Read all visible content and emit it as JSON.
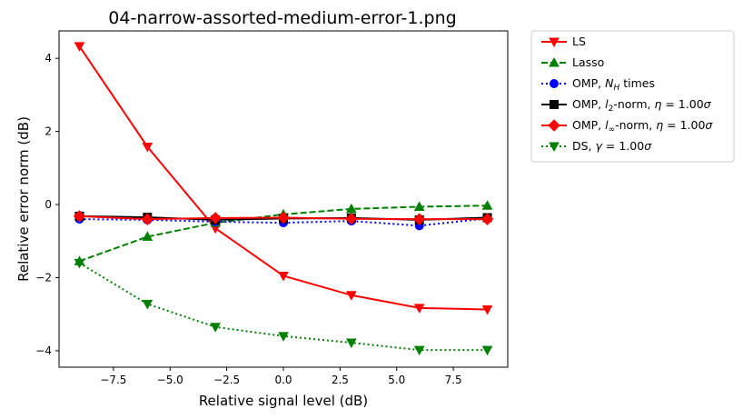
{
  "chart_data": {
    "type": "line",
    "title": "04-narrow-assorted-medium-error-1.png",
    "xlabel": "Relative signal level (dB)",
    "ylabel": "Relative error norm (dB)",
    "xlim": [
      -9.9,
      9.9
    ],
    "ylim": [
      -4.45,
      4.75
    ],
    "xticks": [
      -7.5,
      -5.0,
      -2.5,
      0.0,
      2.5,
      5.0,
      7.5
    ],
    "xtick_labels": [
      "−7.5",
      "−5.0",
      "−2.5",
      "0.0",
      "2.5",
      "5.0",
      "7.5"
    ],
    "yticks": [
      -4,
      -2,
      0,
      2,
      4
    ],
    "ytick_labels": [
      "−4",
      "−2",
      "0",
      "2",
      "4"
    ],
    "grid": false,
    "legend_position": "outside-right-top",
    "x": [
      -9,
      -6,
      -3,
      0,
      3,
      6,
      9
    ],
    "series": [
      {
        "name": "LS",
        "color": "#ff0000",
        "dash": "solid",
        "marker": "triangle-down",
        "values": [
          4.33,
          1.58,
          -0.65,
          -1.95,
          -2.48,
          -2.83,
          -2.87
        ]
      },
      {
        "name": "Lasso",
        "color": "#008000",
        "dash": "dashed",
        "marker": "triangle-up",
        "values": [
          -1.55,
          -0.88,
          -0.5,
          -0.27,
          -0.12,
          -0.06,
          -0.03
        ]
      },
      {
        "name": "OMP, N_H times",
        "color": "#0000ff",
        "dash": "dotted",
        "marker": "circle",
        "values": [
          -0.4,
          -0.42,
          -0.47,
          -0.5,
          -0.45,
          -0.58,
          -0.38
        ]
      },
      {
        "name": "OMP, l_2-norm, η = 1.00σ",
        "color": "#000000",
        "dash": "solid",
        "marker": "square",
        "values": [
          -0.32,
          -0.35,
          -0.42,
          -0.38,
          -0.37,
          -0.42,
          -0.36
        ]
      },
      {
        "name": "OMP, l_∞-norm, η = 1.00σ",
        "color": "#ff0000",
        "dash": "solid",
        "marker": "diamond",
        "values": [
          -0.32,
          -0.4,
          -0.37,
          -0.36,
          -0.39,
          -0.4,
          -0.4
        ]
      },
      {
        "name": "DS, γ = 1.00σ",
        "color": "#008000",
        "dash": "dotted",
        "marker": "triangle-down",
        "values": [
          -1.6,
          -2.72,
          -3.35,
          -3.6,
          -3.78,
          -3.98,
          -3.98
        ]
      }
    ]
  },
  "legend": {
    "ls": "LS",
    "lasso": "Lasso",
    "omp_nh": {
      "pre": "OMP, ",
      "sym": "N",
      "sub": "H",
      "post": " times"
    },
    "omp_l2": {
      "pre": "OMP, ",
      "sym": "l",
      "sub": "2",
      "mid": "-norm, ",
      "var": "η",
      "post": " = 1.00",
      "unit": "σ"
    },
    "omp_linf": {
      "pre": "OMP, ",
      "sym": "l",
      "sub": "∞",
      "mid": "-norm, ",
      "var": "η",
      "post": " = 1.00",
      "unit": "σ"
    },
    "ds": {
      "pre": "DS, ",
      "var": "γ",
      "post": " = 1.00",
      "unit": "σ"
    }
  }
}
